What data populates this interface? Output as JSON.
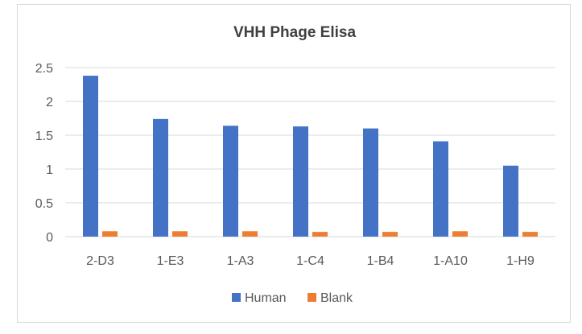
{
  "chart_data": {
    "type": "bar",
    "title": "VHH Phage Elisa",
    "categories": [
      "2-D3",
      "1-E3",
      "1-A3",
      "1-C4",
      "1-B4",
      "1-A10",
      "1-H9"
    ],
    "series": [
      {
        "name": "Human",
        "color": "#4472C4",
        "values": [
          2.38,
          1.74,
          1.64,
          1.63,
          1.6,
          1.41,
          1.05
        ]
      },
      {
        "name": "Blank",
        "color": "#ED7D31",
        "values": [
          0.08,
          0.08,
          0.08,
          0.07,
          0.07,
          0.08,
          0.07
        ]
      }
    ],
    "ylim": [
      0,
      2.5
    ],
    "yticks": [
      "0",
      "0.5",
      "1",
      "1.5",
      "2",
      "2.5"
    ],
    "xlabel": "",
    "ylabel": "",
    "grid": true,
    "legend_position": "bottom"
  }
}
